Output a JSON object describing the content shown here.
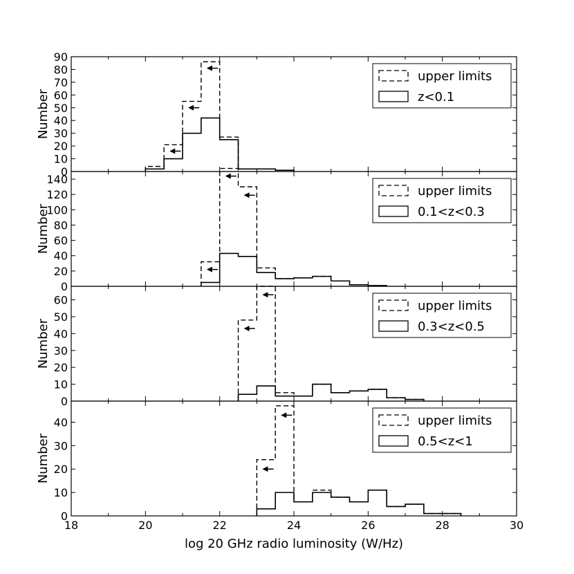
{
  "figure": {
    "xlabel": "log 20 GHz radio luminosity (W/Hz)",
    "xlim": [
      18,
      30
    ],
    "xticks": [
      "18",
      "20",
      "22",
      "24",
      "26",
      "28",
      "30"
    ],
    "legend_placement": "top-right",
    "limit_arrows": "left-pointing arrows mark upper-limit bins"
  },
  "chart_data": [
    {
      "type": "step-histogram",
      "panel": "z<0.1",
      "ylabel": "Number",
      "ylim": [
        0,
        90
      ],
      "yticks": [
        "0",
        "10",
        "20",
        "30",
        "40",
        "50",
        "60",
        "70",
        "80",
        "90"
      ],
      "bin_width": 0.5,
      "series": [
        {
          "name": "upper limits",
          "style": "dashed",
          "bin_starts": [
            20,
            20.5,
            21,
            21.5,
            22,
            22.5,
            23,
            23.5
          ],
          "values": [
            4,
            21,
            55,
            86,
            27,
            2,
            2,
            1
          ]
        },
        {
          "name": "z<0.1",
          "style": "solid",
          "bin_starts": [
            20,
            20.5,
            21,
            21.5,
            22,
            22.5,
            23,
            23.5
          ],
          "values": [
            2,
            10,
            30,
            42,
            25,
            2,
            2,
            1
          ]
        }
      ],
      "arrows_at": [
        {
          "x": 20.8,
          "y": 16
        },
        {
          "x": 21.3,
          "y": 50
        },
        {
          "x": 21.8,
          "y": 81
        }
      ]
    },
    {
      "type": "step-histogram",
      "panel": "0.1<z<0.3",
      "ylabel": "Number",
      "ylim": [
        0,
        150
      ],
      "yticks": [
        "0",
        "20",
        "40",
        "60",
        "80",
        "100",
        "120",
        "140"
      ],
      "bin_width": 0.5,
      "series": [
        {
          "name": "upper limits",
          "style": "dashed",
          "bin_starts": [
            21.5,
            22,
            22.5,
            23,
            23.5,
            24,
            24.5,
            25,
            25.5,
            26
          ],
          "values": [
            32,
            154,
            130,
            24,
            10,
            11,
            13,
            7,
            2,
            1
          ]
        },
        {
          "name": "0.1<z<0.3",
          "style": "solid",
          "bin_starts": [
            21.5,
            22,
            22.5,
            23,
            23.5,
            24,
            24.5,
            25,
            25.5,
            26
          ],
          "values": [
            5,
            43,
            39,
            18,
            10,
            11,
            13,
            7,
            2,
            1
          ]
        }
      ],
      "arrows_at": [
        {
          "x": 21.8,
          "y": 22
        },
        {
          "x": 22.3,
          "y": 144
        },
        {
          "x": 22.8,
          "y": 119
        }
      ]
    },
    {
      "type": "step-histogram",
      "panel": "0.3<z<0.5",
      "ylabel": "Number",
      "ylim": [
        0,
        68
      ],
      "yticks": [
        "0",
        "10",
        "20",
        "30",
        "40",
        "50",
        "60"
      ],
      "bin_width": 0.5,
      "series": [
        {
          "name": "upper limits",
          "style": "dashed",
          "bin_starts": [
            22.5,
            23,
            23.5,
            24,
            24.5,
            25,
            25.5,
            26,
            26.5,
            27
          ],
          "values": [
            48,
            68,
            5,
            3,
            10,
            5,
            6,
            7,
            2,
            1
          ]
        },
        {
          "name": "0.3<z<0.5",
          "style": "solid",
          "bin_starts": [
            22.5,
            23,
            23.5,
            24,
            24.5,
            25,
            25.5,
            26,
            26.5,
            27
          ],
          "values": [
            4,
            9,
            3,
            3,
            10,
            5,
            6,
            7,
            2,
            1
          ]
        }
      ],
      "arrows_at": [
        {
          "x": 22.8,
          "y": 43
        },
        {
          "x": 23.3,
          "y": 63
        }
      ]
    },
    {
      "type": "step-histogram",
      "panel": "0.5<z<1",
      "ylabel": "Number",
      "ylim": [
        0,
        49
      ],
      "yticks": [
        "0",
        "10",
        "20",
        "30",
        "40"
      ],
      "bin_width": 0.5,
      "series": [
        {
          "name": "upper limits",
          "style": "dashed",
          "bin_starts": [
            23,
            23.5,
            24,
            24.5,
            25,
            25.5,
            26,
            26.5,
            27,
            27.5,
            28
          ],
          "values": [
            24,
            47,
            6,
            11,
            8,
            6,
            11,
            4,
            5,
            1,
            1
          ]
        },
        {
          "name": "0.5<z<1",
          "style": "solid",
          "bin_starts": [
            23,
            23.5,
            24,
            24.5,
            25,
            25.5,
            26,
            26.5,
            27,
            27.5,
            28
          ],
          "values": [
            3,
            10,
            6,
            10,
            8,
            6,
            11,
            4,
            5,
            1,
            1
          ]
        }
      ],
      "arrows_at": [
        {
          "x": 23.3,
          "y": 20
        },
        {
          "x": 23.8,
          "y": 43
        }
      ]
    }
  ]
}
